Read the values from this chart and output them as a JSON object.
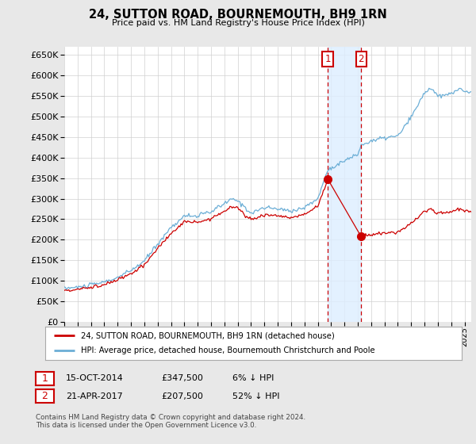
{
  "title": "24, SUTTON ROAD, BOURNEMOUTH, BH9 1RN",
  "subtitle": "Price paid vs. HM Land Registry's House Price Index (HPI)",
  "ylim": [
    0,
    670000
  ],
  "yticks": [
    0,
    50000,
    100000,
    150000,
    200000,
    250000,
    300000,
    350000,
    400000,
    450000,
    500000,
    550000,
    600000,
    650000
  ],
  "bg_color": "#e8e8e8",
  "plot_bg_color": "#ffffff",
  "hpi_color": "#6baed6",
  "sale_color": "#cc0000",
  "sale1_x": 2014.75,
  "sale1_price": 347500,
  "sale2_x": 2017.25,
  "sale2_price": 207500,
  "legend_sale": "24, SUTTON ROAD, BOURNEMOUTH, BH9 1RN (detached house)",
  "legend_hpi": "HPI: Average price, detached house, Bournemouth Christchurch and Poole",
  "table_row1": [
    "1",
    "15-OCT-2014",
    "£347,500",
    "6% ↓ HPI"
  ],
  "table_row2": [
    "2",
    "21-APR-2017",
    "£207,500",
    "52% ↓ HPI"
  ],
  "footnote": "Contains HM Land Registry data © Crown copyright and database right 2024.\nThis data is licensed under the Open Government Licence v3.0.",
  "vline_color": "#cc0000",
  "shade_color": "#ddeeff",
  "xlim_start": 1995.0,
  "xlim_end": 2025.5
}
